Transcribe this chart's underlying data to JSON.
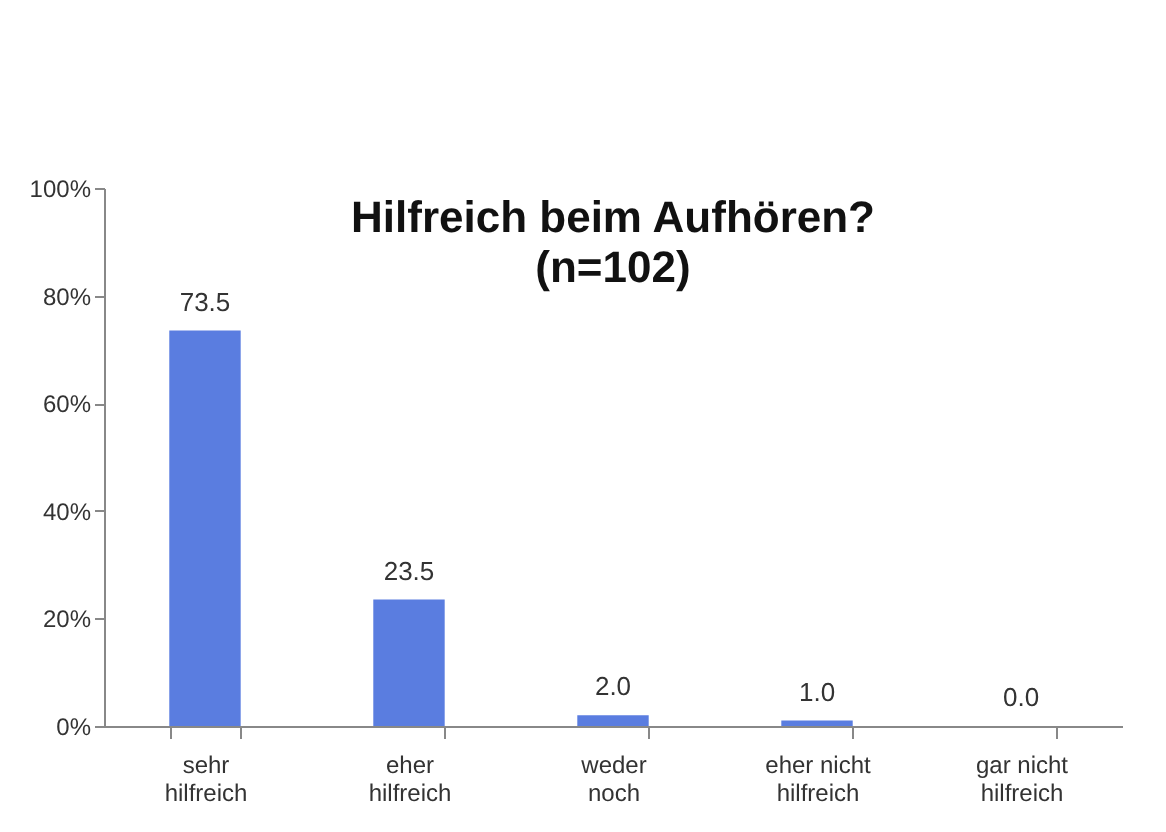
{
  "chart_data": {
    "type": "bar",
    "title": "Hilfreich beim Aufhören?",
    "subtitle": "(n=102)",
    "categories": [
      "sehr hilfreich",
      "eher hilfreich",
      "weder noch",
      "eher nicht hilfreich",
      "gar nicht hilfreich"
    ],
    "values": [
      73.5,
      23.5,
      2.0,
      1.0,
      0.0
    ],
    "value_labels": [
      "73.5",
      "23.5",
      "2.0",
      "1.0",
      "0.0"
    ],
    "color": "#5a7de0",
    "ylim": [
      0,
      100
    ],
    "yticks": [
      {
        "value": 0,
        "label": "0%"
      },
      {
        "value": 20,
        "label": "20%"
      },
      {
        "value": 40,
        "label": "40%"
      },
      {
        "value": 60,
        "label": "60%"
      },
      {
        "value": 80,
        "label": "80%"
      },
      {
        "value": 100,
        "label": "100%"
      }
    ],
    "grid": false
  }
}
